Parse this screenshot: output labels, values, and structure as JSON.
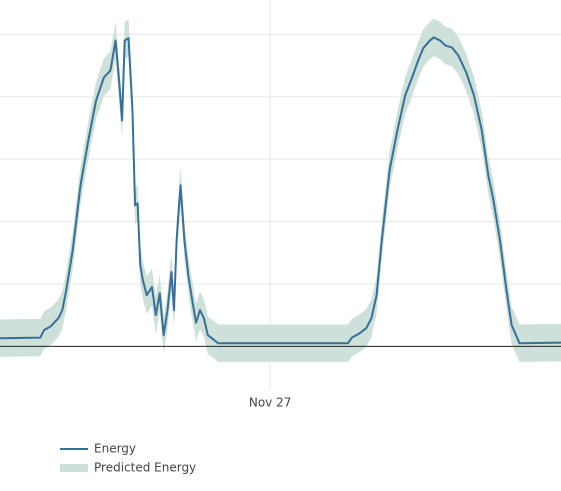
{
  "chart_data": {
    "type": "line",
    "x": [
      -20.8,
      -17.7,
      -17.4,
      -16.9,
      -16.3,
      -16.0,
      -15.7,
      -15.2,
      -14.6,
      -14.0,
      -13.4,
      -12.8,
      -12.3,
      -11.9,
      -11.6,
      -11.4,
      -11.2,
      -10.9,
      -10.6,
      -10.4,
      -10.2,
      -10.0,
      -9.8,
      -9.5,
      -9.1,
      -8.8,
      -8.5,
      -8.2,
      -7.9,
      -7.6,
      -7.4,
      -7.2,
      -6.9,
      -6.6,
      -6.3,
      -6.0,
      -5.7,
      -5.4,
      -5.1,
      -4.8,
      -4.0,
      6.0,
      6.3,
      6.9,
      7.4,
      7.8,
      8.2,
      8.6,
      9.2,
      9.8,
      10.4,
      10.9,
      11.4,
      11.8,
      12.3,
      12.6,
      13.1,
      13.5,
      14.0,
      14.5,
      15.1,
      15.7,
      16.3,
      16.8,
      17.2,
      17.7,
      18.2,
      18.6,
      19.2,
      22.4
    ],
    "series": [
      {
        "name": "Energy",
        "color": "#3a6f96",
        "values": [
          0.13,
          0.14,
          0.26,
          0.32,
          0.45,
          0.58,
          0.9,
          1.54,
          2.58,
          3.3,
          3.94,
          4.31,
          4.42,
          4.9,
          4.18,
          3.62,
          4.9,
          4.94,
          3.78,
          2.26,
          2.29,
          1.3,
          1.06,
          0.82,
          0.95,
          0.5,
          0.85,
          0.18,
          0.58,
          1.19,
          0.58,
          1.7,
          2.58,
          1.7,
          1.14,
          0.74,
          0.38,
          0.58,
          0.45,
          0.18,
          0.05,
          0.05,
          0.14,
          0.21,
          0.29,
          0.45,
          0.82,
          1.7,
          2.82,
          3.46,
          4.02,
          4.29,
          4.58,
          4.78,
          4.9,
          4.95,
          4.9,
          4.82,
          4.79,
          4.66,
          4.39,
          4.02,
          3.46,
          2.74,
          2.34,
          1.7,
          0.9,
          0.34,
          0.05,
          0.06
        ]
      },
      {
        "name": "Predicted Energy",
        "color": "#cde0da",
        "upper": [
          0.43,
          0.44,
          0.56,
          0.62,
          0.75,
          0.88,
          1.2,
          1.84,
          2.88,
          3.6,
          4.24,
          4.61,
          4.72,
          5.2,
          4.48,
          3.92,
          5.2,
          5.24,
          4.08,
          2.56,
          2.59,
          1.6,
          1.36,
          1.12,
          1.25,
          0.8,
          1.15,
          0.48,
          0.88,
          1.49,
          0.88,
          2.0,
          2.88,
          2.0,
          1.44,
          1.04,
          0.68,
          0.88,
          0.75,
          0.48,
          0.35,
          0.35,
          0.44,
          0.51,
          0.59,
          0.75,
          1.12,
          2.0,
          3.12,
          3.76,
          4.32,
          4.59,
          4.88,
          5.08,
          5.2,
          5.25,
          5.2,
          5.12,
          5.09,
          4.96,
          4.69,
          4.32,
          3.76,
          3.04,
          2.64,
          2.0,
          1.2,
          0.64,
          0.35,
          0.36
        ],
        "lower": [
          -0.17,
          -0.16,
          -0.04,
          0.02,
          0.15,
          0.28,
          0.6,
          1.24,
          2.28,
          3.0,
          3.64,
          4.01,
          4.12,
          4.6,
          3.88,
          3.32,
          4.6,
          4.64,
          3.48,
          1.96,
          1.99,
          1.0,
          0.76,
          0.52,
          0.65,
          0.2,
          0.55,
          -0.12,
          0.28,
          0.89,
          0.28,
          1.4,
          2.28,
          1.4,
          0.84,
          0.44,
          0.08,
          0.28,
          0.15,
          -0.12,
          -0.25,
          -0.25,
          -0.16,
          -0.09,
          -0.01,
          0.15,
          0.52,
          1.4,
          2.52,
          3.16,
          3.72,
          3.99,
          4.28,
          4.48,
          4.6,
          4.65,
          4.6,
          4.52,
          4.49,
          4.36,
          4.09,
          3.72,
          3.16,
          2.44,
          2.04,
          1.4,
          0.6,
          0.04,
          -0.25,
          -0.24
        ]
      }
    ],
    "xlim": [
      -20.8,
      22.4
    ],
    "xticks": [
      {
        "value": 0,
        "label": "Nov 27"
      }
    ],
    "ylim": [
      -0.7,
      5.55
    ],
    "yticks": [
      0,
      1,
      2,
      3,
      4,
      5
    ],
    "grid": true
  }
}
